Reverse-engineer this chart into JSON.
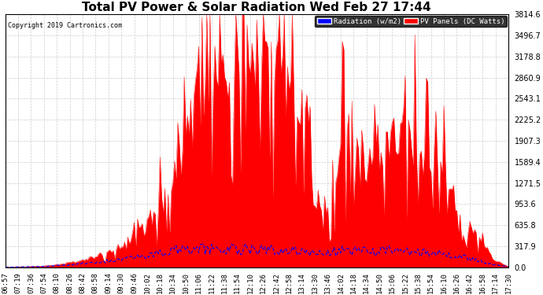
{
  "title": "Total PV Power & Solar Radiation Wed Feb 27 17:44",
  "copyright": "Copyright 2019 Cartronics.com",
  "y_max": 3814.6,
  "y_ticks": [
    0.0,
    317.9,
    635.8,
    953.6,
    1271.5,
    1589.4,
    1907.3,
    2225.2,
    2543.1,
    2860.9,
    3178.8,
    3496.7,
    3814.6
  ],
  "legend_radiation_label": "Radiation (w/m2)",
  "legend_pv_label": "PV Panels (DC Watts)",
  "radiation_color": "#0000ff",
  "pv_color": "#ff0000",
  "background_color": "#ffffff",
  "grid_color": "#cccccc",
  "time_labels": [
    "06:57",
    "07:19",
    "07:36",
    "07:54",
    "08:10",
    "08:26",
    "08:42",
    "08:58",
    "09:14",
    "09:30",
    "09:46",
    "10:02",
    "10:18",
    "10:34",
    "10:50",
    "11:06",
    "11:22",
    "11:38",
    "11:54",
    "12:10",
    "12:26",
    "12:42",
    "12:58",
    "13:14",
    "13:30",
    "13:46",
    "14:02",
    "14:18",
    "14:34",
    "14:50",
    "15:06",
    "15:22",
    "15:38",
    "15:54",
    "16:10",
    "16:26",
    "16:42",
    "16:58",
    "17:14",
    "17:30"
  ],
  "pv_envelope": [
    5,
    8,
    12,
    20,
    40,
    70,
    110,
    160,
    240,
    370,
    550,
    780,
    1050,
    1500,
    2200,
    3000,
    3400,
    3200,
    3600,
    3814,
    3500,
    3400,
    3200,
    2600,
    1600,
    1100,
    2000,
    2500,
    1700,
    1900,
    2200,
    2400,
    2000,
    1800,
    1500,
    1100,
    700,
    350,
    100,
    15
  ],
  "radiation_envelope": [
    3,
    5,
    8,
    14,
    25,
    40,
    55,
    75,
    95,
    115,
    140,
    175,
    210,
    250,
    280,
    275,
    270,
    268,
    272,
    275,
    255,
    258,
    245,
    238,
    225,
    215,
    255,
    258,
    242,
    248,
    252,
    248,
    238,
    222,
    195,
    168,
    130,
    85,
    38,
    6
  ],
  "title_fontsize": 11,
  "tick_fontsize": 6.5,
  "y_tick_fontsize": 7,
  "copyright_fontsize": 6,
  "legend_fontsize": 6.5
}
